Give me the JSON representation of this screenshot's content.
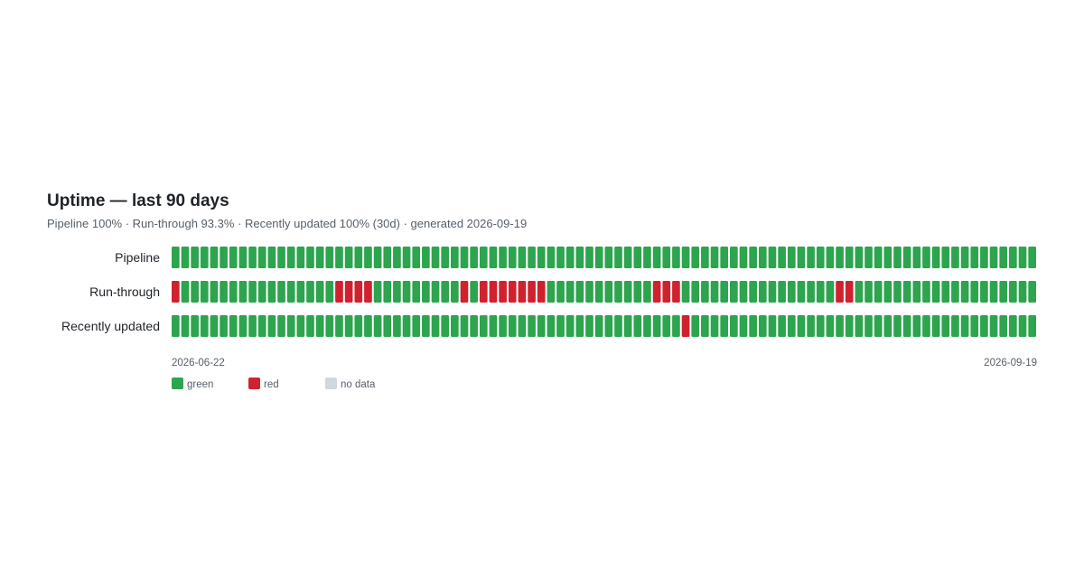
{
  "chart_data": {
    "type": "heatmap",
    "title": "Uptime — last 90 days",
    "subtitle": "Pipeline 100% · Run-through 93.3% · Recently updated 100% (30d) · generated 2026-09-19",
    "x_start_label": "2026-06-22",
    "x_end_label": "2026-09-19",
    "days": 90,
    "colors": {
      "green": "#2da44e",
      "red": "#cf222e",
      "no_data": "#d0d7de"
    },
    "legend": [
      {
        "key": "green",
        "label": "green"
      },
      {
        "key": "red",
        "label": "red"
      },
      {
        "key": "no_data",
        "label": "no data"
      }
    ],
    "series": [
      {
        "name": "Pipeline",
        "values": [
          "green",
          "green",
          "green",
          "green",
          "green",
          "green",
          "green",
          "green",
          "green",
          "green",
          "green",
          "green",
          "green",
          "green",
          "green",
          "green",
          "green",
          "green",
          "green",
          "green",
          "green",
          "green",
          "green",
          "green",
          "green",
          "green",
          "green",
          "green",
          "green",
          "green",
          "green",
          "green",
          "green",
          "green",
          "green",
          "green",
          "green",
          "green",
          "green",
          "green",
          "green",
          "green",
          "green",
          "green",
          "green",
          "green",
          "green",
          "green",
          "green",
          "green",
          "green",
          "green",
          "green",
          "green",
          "green",
          "green",
          "green",
          "green",
          "green",
          "green",
          "green",
          "green",
          "green",
          "green",
          "green",
          "green",
          "green",
          "green",
          "green",
          "green",
          "green",
          "green",
          "green",
          "green",
          "green",
          "green",
          "green",
          "green",
          "green",
          "green",
          "green",
          "green",
          "green",
          "green",
          "green",
          "green",
          "green",
          "green",
          "green",
          "green"
        ]
      },
      {
        "name": "Run-through",
        "values": [
          "red",
          "green",
          "green",
          "green",
          "green",
          "green",
          "green",
          "green",
          "green",
          "green",
          "green",
          "green",
          "green",
          "green",
          "green",
          "green",
          "green",
          "red",
          "red",
          "red",
          "red",
          "green",
          "green",
          "green",
          "green",
          "green",
          "green",
          "green",
          "green",
          "green",
          "red",
          "green",
          "red",
          "red",
          "red",
          "red",
          "red",
          "red",
          "red",
          "green",
          "green",
          "green",
          "green",
          "green",
          "green",
          "green",
          "green",
          "green",
          "green",
          "green",
          "red",
          "red",
          "red",
          "green",
          "green",
          "green",
          "green",
          "green",
          "green",
          "green",
          "green",
          "green",
          "green",
          "green",
          "green",
          "green",
          "green",
          "green",
          "green",
          "red",
          "red",
          "green",
          "green",
          "green",
          "green",
          "green",
          "green",
          "green",
          "green",
          "green",
          "green",
          "green",
          "green",
          "green",
          "green",
          "green",
          "green",
          "green",
          "green",
          "green"
        ]
      },
      {
        "name": "Recently updated",
        "values": [
          "green",
          "green",
          "green",
          "green",
          "green",
          "green",
          "green",
          "green",
          "green",
          "green",
          "green",
          "green",
          "green",
          "green",
          "green",
          "green",
          "green",
          "green",
          "green",
          "green",
          "green",
          "green",
          "green",
          "green",
          "green",
          "green",
          "green",
          "green",
          "green",
          "green",
          "green",
          "green",
          "green",
          "green",
          "green",
          "green",
          "green",
          "green",
          "green",
          "green",
          "green",
          "green",
          "green",
          "green",
          "green",
          "green",
          "green",
          "green",
          "green",
          "green",
          "green",
          "green",
          "green",
          "red",
          "green",
          "green",
          "green",
          "green",
          "green",
          "green",
          "green",
          "green",
          "green",
          "green",
          "green",
          "green",
          "green",
          "green",
          "green",
          "green",
          "green",
          "green",
          "green",
          "green",
          "green",
          "green",
          "green",
          "green",
          "green",
          "green",
          "green",
          "green",
          "green",
          "green",
          "green",
          "green",
          "green",
          "green",
          "green",
          "green"
        ]
      }
    ]
  }
}
